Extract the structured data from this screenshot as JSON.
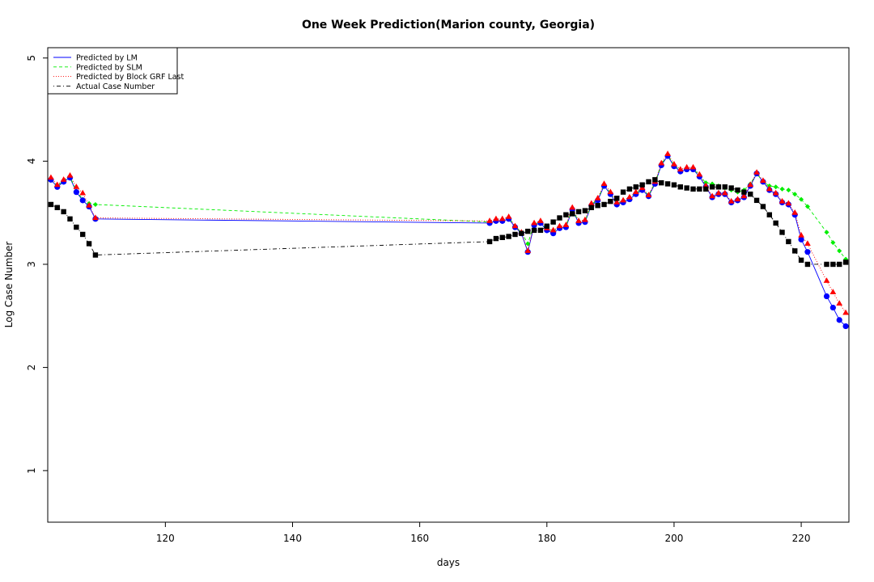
{
  "chart_data": {
    "type": "line",
    "title": "One Week Prediction(Marion county, Georgia)",
    "xlabel": "days",
    "ylabel": "Log Case Number",
    "xlim": [
      101.5,
      227.5
    ],
    "ylim": [
      0.5,
      5.1
    ],
    "x_ticks": [
      120,
      140,
      160,
      180,
      200,
      220
    ],
    "y_ticks": [
      1,
      2,
      3,
      4,
      5
    ],
    "legend_position": "top-left",
    "grid": false,
    "series": [
      {
        "name": "Predicted by LM",
        "color": "#0000ff",
        "line_style": "solid",
        "marker": "circle",
        "points": [
          [
            102,
            3.82
          ],
          [
            103,
            3.75
          ],
          [
            104,
            3.8
          ],
          [
            105,
            3.84
          ],
          [
            106,
            3.7
          ],
          [
            107,
            3.62
          ],
          [
            108,
            3.56
          ],
          [
            109,
            3.44
          ],
          [
            171,
            3.4
          ],
          [
            172,
            3.42
          ],
          [
            173,
            3.42
          ],
          [
            174,
            3.44
          ],
          [
            175,
            3.36
          ],
          [
            176,
            3.3
          ],
          [
            177,
            3.12
          ],
          [
            178,
            3.38
          ],
          [
            179,
            3.4
          ],
          [
            180,
            3.33
          ],
          [
            181,
            3.3
          ],
          [
            182,
            3.35
          ],
          [
            183,
            3.36
          ],
          [
            184,
            3.53
          ],
          [
            185,
            3.4
          ],
          [
            186,
            3.41
          ],
          [
            187,
            3.57
          ],
          [
            188,
            3.62
          ],
          [
            189,
            3.76
          ],
          [
            190,
            3.68
          ],
          [
            191,
            3.58
          ],
          [
            192,
            3.6
          ],
          [
            193,
            3.63
          ],
          [
            194,
            3.68
          ],
          [
            195,
            3.72
          ],
          [
            196,
            3.66
          ],
          [
            197,
            3.78
          ],
          [
            198,
            3.96
          ],
          [
            199,
            4.05
          ],
          [
            200,
            3.95
          ],
          [
            201,
            3.9
          ],
          [
            202,
            3.92
          ],
          [
            203,
            3.92
          ],
          [
            204,
            3.85
          ],
          [
            205,
            3.75
          ],
          [
            206,
            3.65
          ],
          [
            207,
            3.68
          ],
          [
            208,
            3.68
          ],
          [
            209,
            3.6
          ],
          [
            210,
            3.62
          ],
          [
            211,
            3.65
          ],
          [
            212,
            3.76
          ],
          [
            213,
            3.88
          ],
          [
            214,
            3.8
          ],
          [
            215,
            3.72
          ],
          [
            216,
            3.68
          ],
          [
            217,
            3.6
          ],
          [
            218,
            3.58
          ],
          [
            219,
            3.48
          ],
          [
            220,
            3.24
          ],
          [
            221,
            3.12
          ],
          [
            224,
            2.69
          ],
          [
            225,
            2.58
          ],
          [
            226,
            2.46
          ],
          [
            227,
            2.4
          ]
        ]
      },
      {
        "name": "Predicted by SLM",
        "color": "#00ee00",
        "line_style": "dashed",
        "marker": "diamond",
        "points": [
          [
            102,
            3.82
          ],
          [
            103,
            3.76
          ],
          [
            104,
            3.81
          ],
          [
            105,
            3.85
          ],
          [
            106,
            3.71
          ],
          [
            107,
            3.63
          ],
          [
            108,
            3.59
          ],
          [
            109,
            3.58
          ],
          [
            171,
            3.41
          ],
          [
            172,
            3.43
          ],
          [
            173,
            3.43
          ],
          [
            174,
            3.45
          ],
          [
            175,
            3.37
          ],
          [
            176,
            3.31
          ],
          [
            177,
            3.2
          ],
          [
            178,
            3.39
          ],
          [
            179,
            3.41
          ],
          [
            180,
            3.34
          ],
          [
            181,
            3.32
          ],
          [
            182,
            3.36
          ],
          [
            183,
            3.37
          ],
          [
            184,
            3.54
          ],
          [
            185,
            3.41
          ],
          [
            186,
            3.42
          ],
          [
            187,
            3.58
          ],
          [
            188,
            3.63
          ],
          [
            189,
            3.77
          ],
          [
            190,
            3.69
          ],
          [
            191,
            3.59
          ],
          [
            192,
            3.61
          ],
          [
            193,
            3.64
          ],
          [
            194,
            3.69
          ],
          [
            195,
            3.73
          ],
          [
            196,
            3.67
          ],
          [
            197,
            3.79
          ],
          [
            198,
            3.97
          ],
          [
            199,
            4.06
          ],
          [
            200,
            3.96
          ],
          [
            201,
            3.91
          ],
          [
            202,
            3.93
          ],
          [
            203,
            3.93
          ],
          [
            204,
            3.86
          ],
          [
            205,
            3.79
          ],
          [
            206,
            3.78
          ],
          [
            207,
            3.76
          ],
          [
            208,
            3.74
          ],
          [
            209,
            3.72
          ],
          [
            210,
            3.7
          ],
          [
            211,
            3.72
          ],
          [
            212,
            3.78
          ],
          [
            213,
            3.88
          ],
          [
            214,
            3.8
          ],
          [
            215,
            3.76
          ],
          [
            216,
            3.75
          ],
          [
            217,
            3.73
          ],
          [
            218,
            3.72
          ],
          [
            219,
            3.68
          ],
          [
            220,
            3.63
          ],
          [
            221,
            3.56
          ],
          [
            224,
            3.31
          ],
          [
            225,
            3.21
          ],
          [
            226,
            3.13
          ],
          [
            227,
            3.05
          ]
        ]
      },
      {
        "name": "Predicted by Block GRF Last",
        "color": "#ff0000",
        "line_style": "dotted",
        "marker": "triangle",
        "points": [
          [
            102,
            3.84
          ],
          [
            103,
            3.77
          ],
          [
            104,
            3.82
          ],
          [
            105,
            3.86
          ],
          [
            106,
            3.75
          ],
          [
            107,
            3.69
          ],
          [
            108,
            3.57
          ],
          [
            109,
            3.45
          ],
          [
            171,
            3.42
          ],
          [
            172,
            3.44
          ],
          [
            173,
            3.44
          ],
          [
            174,
            3.46
          ],
          [
            175,
            3.37
          ],
          [
            176,
            3.31
          ],
          [
            177,
            3.13
          ],
          [
            178,
            3.4
          ],
          [
            179,
            3.42
          ],
          [
            180,
            3.35
          ],
          [
            181,
            3.33
          ],
          [
            182,
            3.37
          ],
          [
            183,
            3.38
          ],
          [
            184,
            3.55
          ],
          [
            185,
            3.42
          ],
          [
            186,
            3.43
          ],
          [
            187,
            3.59
          ],
          [
            188,
            3.64
          ],
          [
            189,
            3.78
          ],
          [
            190,
            3.7
          ],
          [
            191,
            3.6
          ],
          [
            192,
            3.62
          ],
          [
            193,
            3.65
          ],
          [
            194,
            3.7
          ],
          [
            195,
            3.74
          ],
          [
            196,
            3.67
          ],
          [
            197,
            3.8
          ],
          [
            198,
            3.98
          ],
          [
            199,
            4.07
          ],
          [
            200,
            3.97
          ],
          [
            201,
            3.92
          ],
          [
            202,
            3.94
          ],
          [
            203,
            3.94
          ],
          [
            204,
            3.87
          ],
          [
            205,
            3.76
          ],
          [
            206,
            3.66
          ],
          [
            207,
            3.69
          ],
          [
            208,
            3.69
          ],
          [
            209,
            3.61
          ],
          [
            210,
            3.63
          ],
          [
            211,
            3.66
          ],
          [
            212,
            3.77
          ],
          [
            213,
            3.89
          ],
          [
            214,
            3.81
          ],
          [
            215,
            3.73
          ],
          [
            216,
            3.69
          ],
          [
            217,
            3.61
          ],
          [
            218,
            3.59
          ],
          [
            219,
            3.5
          ],
          [
            220,
            3.28
          ],
          [
            221,
            3.2
          ],
          [
            224,
            2.84
          ],
          [
            225,
            2.73
          ],
          [
            226,
            2.62
          ],
          [
            227,
            2.53
          ]
        ]
      },
      {
        "name": "Actual Case Number",
        "color": "#000000",
        "line_style": "dotdash",
        "marker": "square",
        "points": [
          [
            102,
            3.58
          ],
          [
            103,
            3.55
          ],
          [
            104,
            3.51
          ],
          [
            105,
            3.44
          ],
          [
            106,
            3.36
          ],
          [
            107,
            3.29
          ],
          [
            108,
            3.2
          ],
          [
            109,
            3.09
          ],
          [
            171,
            3.22
          ],
          [
            172,
            3.25
          ],
          [
            173,
            3.26
          ],
          [
            174,
            3.27
          ],
          [
            175,
            3.29
          ],
          [
            176,
            3.3
          ],
          [
            177,
            3.32
          ],
          [
            178,
            3.33
          ],
          [
            179,
            3.33
          ],
          [
            180,
            3.37
          ],
          [
            181,
            3.41
          ],
          [
            182,
            3.45
          ],
          [
            183,
            3.48
          ],
          [
            184,
            3.49
          ],
          [
            185,
            3.51
          ],
          [
            186,
            3.52
          ],
          [
            187,
            3.55
          ],
          [
            188,
            3.57
          ],
          [
            189,
            3.58
          ],
          [
            190,
            3.61
          ],
          [
            191,
            3.64
          ],
          [
            192,
            3.7
          ],
          [
            193,
            3.73
          ],
          [
            194,
            3.75
          ],
          [
            195,
            3.77
          ],
          [
            196,
            3.8
          ],
          [
            197,
            3.82
          ],
          [
            198,
            3.79
          ],
          [
            199,
            3.78
          ],
          [
            200,
            3.77
          ],
          [
            201,
            3.75
          ],
          [
            202,
            3.74
          ],
          [
            203,
            3.73
          ],
          [
            204,
            3.73
          ],
          [
            205,
            3.73
          ],
          [
            206,
            3.75
          ],
          [
            207,
            3.75
          ],
          [
            208,
            3.75
          ],
          [
            209,
            3.74
          ],
          [
            210,
            3.72
          ],
          [
            211,
            3.7
          ],
          [
            212,
            3.68
          ],
          [
            213,
            3.62
          ],
          [
            214,
            3.56
          ],
          [
            215,
            3.48
          ],
          [
            216,
            3.4
          ],
          [
            217,
            3.31
          ],
          [
            218,
            3.22
          ],
          [
            219,
            3.13
          ],
          [
            220,
            3.04
          ],
          [
            221,
            3.0
          ],
          [
            224,
            3.0
          ],
          [
            225,
            3.0
          ],
          [
            226,
            3.0
          ],
          [
            227,
            3.02
          ]
        ]
      }
    ]
  }
}
